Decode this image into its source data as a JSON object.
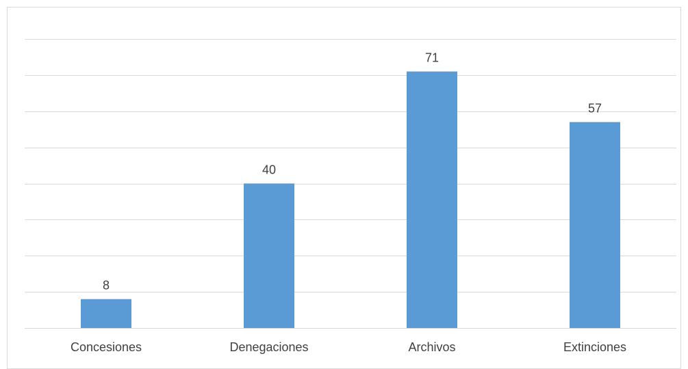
{
  "chart_data": {
    "type": "bar",
    "categories": [
      "Concesiones",
      "Denegaciones",
      "Archivos",
      "Extinciones"
    ],
    "values": [
      8,
      40,
      71,
      57
    ],
    "data_labels": [
      "8",
      "40",
      "71",
      "57"
    ],
    "ylim": [
      0,
      80
    ],
    "y_gridline_step": 10,
    "grid": true,
    "legend": "none",
    "colors": {
      "bar": "#5b9bd5",
      "gridline": "#d9d9d9",
      "text": "#404040"
    }
  }
}
